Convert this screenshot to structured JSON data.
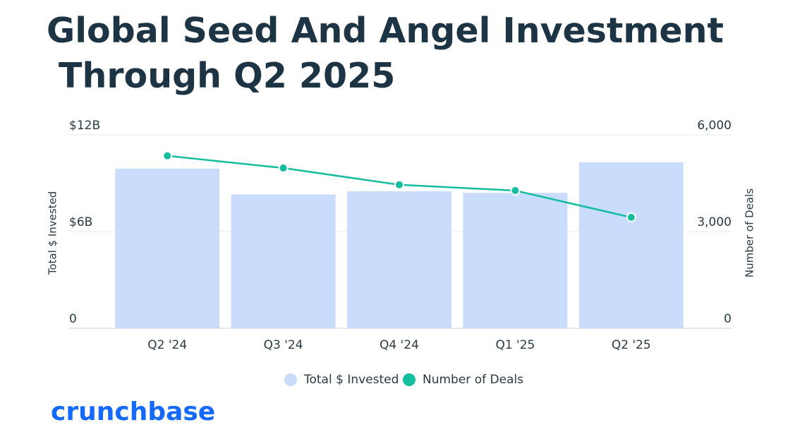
{
  "chart_data": {
    "type": "bar-line",
    "title": "Global Seed And Angel Investment Through Q2 2025",
    "categories": [
      "Q2 '24",
      "Q3 '24",
      "Q4 '24",
      "Q1 '25",
      "Q2 '25"
    ],
    "series": [
      {
        "name": "Total $ Invested",
        "type": "bar",
        "color": "#cadcfc",
        "values": [
          9.9,
          8.3,
          8.5,
          8.4,
          10.3
        ]
      },
      {
        "name": "Number of Deals",
        "type": "line",
        "axis": "y2",
        "color": "#13bd9d",
        "values": [
          5350,
          4970,
          4450,
          4270,
          3440
        ]
      }
    ],
    "y_label": "Total $ Invested",
    "y2_label": "Number of Deals",
    "ylim": [
      0,
      12
    ],
    "yticks": [
      0,
      {
        "value": 6,
        "label": "$6B"
      },
      {
        "value": 12,
        "label": "$12B"
      }
    ],
    "y2lim": [
      0,
      6000
    ],
    "y2ticks": [
      0,
      {
        "value": 3000,
        "label": "3,000"
      },
      {
        "value": 6000,
        "label": "6,000"
      }
    ],
    "grid": true,
    "legend": "bottom",
    "brand": "crunchbase"
  }
}
